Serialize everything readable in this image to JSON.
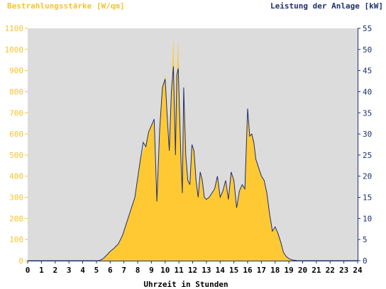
{
  "chart_data": {
    "type": "area",
    "title_left": "Bestrahlungsstärke [W/qm]",
    "title_right": "Leistung der Anlage [kW]",
    "xlabel": "Uhrzeit in Stunden",
    "xlim": [
      0,
      24
    ],
    "ylim_left": [
      0,
      1100
    ],
    "ylim_right": [
      0,
      55
    ],
    "x_ticks": [
      "0",
      "1",
      "2",
      "3",
      "4",
      "5",
      "6",
      "7",
      "8",
      "9",
      "10",
      "11",
      "12",
      "13",
      "14",
      "15",
      "16",
      "17",
      "18",
      "19",
      "20",
      "21",
      "22",
      "23",
      "24"
    ],
    "y_left_ticks": [
      "0",
      "100",
      "200",
      "300",
      "400",
      "500",
      "600",
      "700",
      "800",
      "900",
      "1000",
      "1100"
    ],
    "y_right_ticks": [
      "0",
      "5",
      "10",
      "15",
      "20",
      "25",
      "30",
      "35",
      "40",
      "45",
      "50",
      "55"
    ],
    "grid": false,
    "series": [
      {
        "axis": "left",
        "style": "area",
        "color": "#ffc933",
        "x": [
          0,
          5.2,
          5.5,
          5.8,
          6.0,
          6.3,
          6.6,
          6.9,
          7.2,
          7.5,
          7.8,
          8.0,
          8.2,
          8.4,
          8.6,
          8.8,
          9.0,
          9.2,
          9.4,
          9.6,
          9.8,
          10.0,
          10.15,
          10.3,
          10.45,
          10.6,
          10.75,
          10.85,
          10.95,
          11.05,
          11.15,
          11.25,
          11.35,
          11.5,
          11.65,
          11.8,
          11.95,
          12.1,
          12.25,
          12.4,
          12.55,
          12.7,
          12.85,
          13.0,
          13.2,
          13.4,
          13.6,
          13.8,
          14.0,
          14.2,
          14.4,
          14.6,
          14.8,
          15.0,
          15.2,
          15.4,
          15.6,
          15.8,
          16.0,
          16.15,
          16.3,
          16.45,
          16.6,
          16.8,
          17.0,
          17.2,
          17.4,
          17.6,
          17.8,
          18.0,
          18.2,
          18.4,
          18.6,
          18.8,
          19.0,
          19.2,
          19.4,
          19.6,
          19.8,
          20.0,
          24
        ],
        "values": [
          0,
          0,
          10,
          30,
          45,
          60,
          80,
          120,
          180,
          240,
          300,
          400,
          480,
          520,
          560,
          610,
          640,
          660,
          300,
          620,
          820,
          880,
          700,
          520,
          780,
          1060,
          500,
          880,
          1050,
          700,
          500,
          300,
          820,
          500,
          380,
          360,
          540,
          520,
          380,
          300,
          420,
          380,
          300,
          290,
          300,
          320,
          340,
          400,
          300,
          330,
          380,
          290,
          420,
          380,
          250,
          330,
          360,
          340,
          680,
          590,
          600,
          560,
          480,
          440,
          400,
          380,
          320,
          220,
          140,
          160,
          130,
          90,
          40,
          20,
          10,
          5,
          2,
          0,
          0,
          0,
          0
        ]
      },
      {
        "axis": "right",
        "style": "line",
        "color": "#1f2f6e",
        "x": [
          0,
          5.2,
          5.5,
          5.8,
          6.0,
          6.3,
          6.6,
          6.9,
          7.2,
          7.5,
          7.8,
          8.0,
          8.2,
          8.4,
          8.6,
          8.8,
          9.0,
          9.2,
          9.4,
          9.6,
          9.8,
          10.0,
          10.15,
          10.3,
          10.45,
          10.6,
          10.75,
          10.85,
          10.95,
          11.05,
          11.15,
          11.25,
          11.35,
          11.5,
          11.65,
          11.8,
          11.95,
          12.1,
          12.25,
          12.4,
          12.55,
          12.7,
          12.85,
          13.0,
          13.2,
          13.4,
          13.6,
          13.8,
          14.0,
          14.2,
          14.4,
          14.6,
          14.8,
          15.0,
          15.2,
          15.4,
          15.6,
          15.8,
          16.0,
          16.15,
          16.3,
          16.45,
          16.6,
          16.8,
          17.0,
          17.2,
          17.4,
          17.6,
          17.8,
          18.0,
          18.2,
          18.4,
          18.6,
          18.8,
          19.0,
          19.2,
          19.4,
          19.6,
          19.8,
          20.0,
          24
        ],
        "values": [
          0,
          0,
          0.5,
          1.5,
          2.2,
          3.0,
          4.0,
          6.0,
          9.0,
          12.0,
          15.0,
          19.5,
          24.0,
          28.0,
          27.0,
          30.5,
          32.0,
          33.5,
          14.0,
          31.0,
          41.0,
          43.0,
          34.0,
          26.0,
          40.0,
          46.0,
          25.0,
          44.0,
          45.5,
          35.0,
          24.0,
          16.0,
          41.0,
          25.0,
          19.0,
          18.0,
          27.5,
          26.0,
          19.0,
          15.0,
          21.0,
          19.0,
          15.0,
          14.5,
          15.0,
          16.0,
          17.0,
          20.0,
          15.0,
          16.5,
          19.0,
          14.5,
          21.0,
          19.0,
          12.5,
          16.5,
          18.0,
          17.0,
          36.0,
          29.5,
          30.0,
          28.0,
          24.0,
          22.0,
          20.0,
          19.0,
          16.0,
          11.0,
          7.0,
          8.0,
          6.5,
          4.5,
          2.0,
          1.0,
          0.5,
          0.2,
          0.1,
          0,
          0,
          0,
          0
        ]
      }
    ]
  }
}
